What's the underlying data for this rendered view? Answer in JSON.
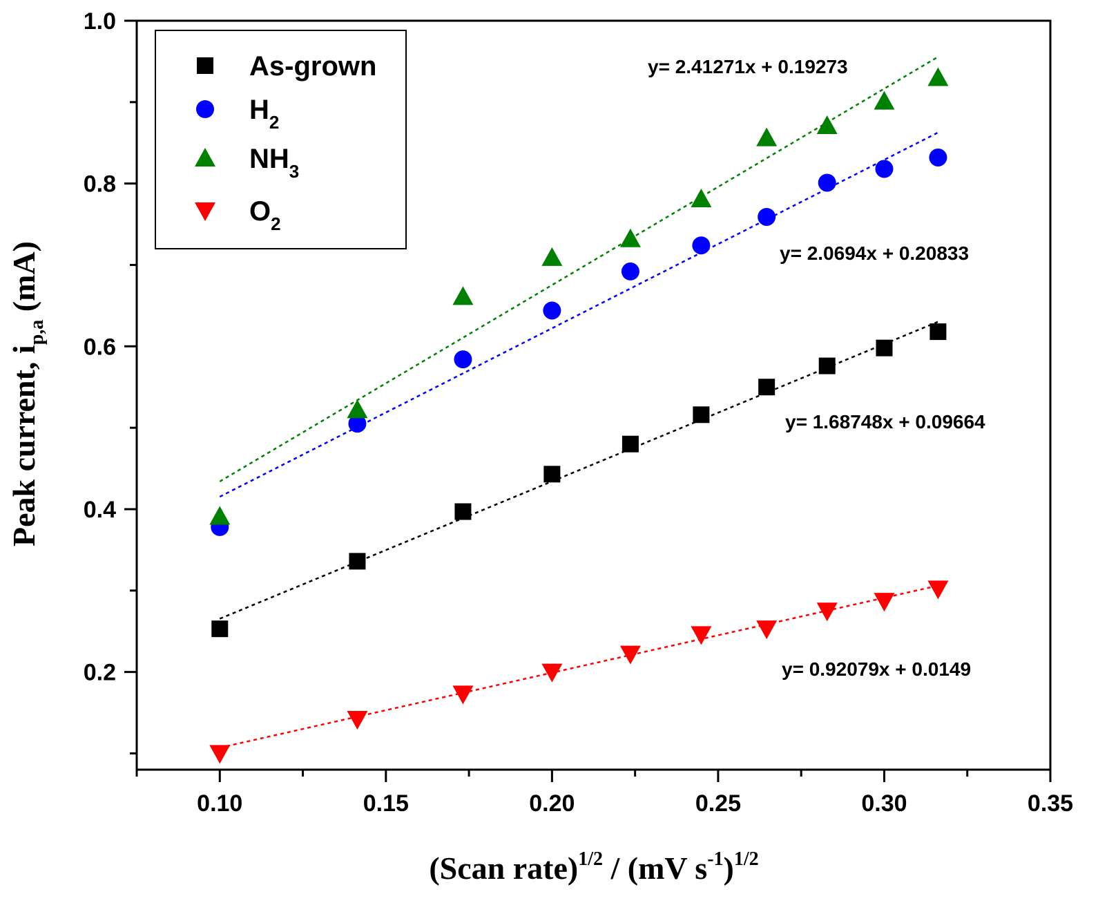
{
  "chart_data": {
    "type": "scatter",
    "title": "",
    "xlabel": {
      "main": "(Scan rate)",
      "sup1": "1/2",
      "mid": " / (mV s",
      "sup2": "-1",
      "close": ")",
      "sup3": "1/2"
    },
    "ylabel": {
      "main": "Peak current, i",
      "sub": "p,a",
      "unit": " (mA)"
    },
    "xlim": [
      0.075,
      0.35
    ],
    "ylim": [
      0.08,
      1.0
    ],
    "grid": false,
    "legend_position": "top-left",
    "x_ticks": [
      0.1,
      0.15,
      0.2,
      0.25,
      0.3,
      0.35
    ],
    "x_tick_labels": [
      "0.10",
      "0.15",
      "0.20",
      "0.25",
      "0.30",
      "0.35"
    ],
    "y_ticks": [
      0.2,
      0.4,
      0.6,
      0.8,
      1.0
    ],
    "y_tick_labels": [
      "0.2",
      "0.4",
      "0.6",
      "0.8",
      "1.0"
    ],
    "x": [
      0.1,
      0.1414,
      0.1732,
      0.2,
      0.2236,
      0.2449,
      0.2646,
      0.2828,
      0.3,
      0.3162
    ],
    "series": [
      {
        "name": "As-grown",
        "label_main": "As-grown",
        "label_sub": "",
        "marker": "square",
        "color": "#000000",
        "values": [
          0.253,
          0.336,
          0.397,
          0.443,
          0.48,
          0.516,
          0.55,
          0.576,
          0.598,
          0.618
        ],
        "fit": {
          "slope": 1.68748,
          "intercept": 0.09664,
          "label": "y= 1.68748x + 0.09664"
        }
      },
      {
        "name": "H2",
        "label_main": "H",
        "label_sub": "2",
        "marker": "circle",
        "color": "#0000ff",
        "values": [
          0.378,
          0.505,
          0.584,
          0.644,
          0.692,
          0.724,
          0.759,
          0.801,
          0.818,
          0.832
        ],
        "fit": {
          "slope": 2.0694,
          "intercept": 0.20833,
          "label": "y= 2.0694x + 0.20833"
        }
      },
      {
        "name": "NH3",
        "label_main": "NH",
        "label_sub": "3",
        "marker": "triangle-up",
        "color": "#008000",
        "values": [
          0.391,
          0.522,
          0.661,
          0.709,
          0.732,
          0.781,
          0.856,
          0.871,
          0.901,
          0.93
        ],
        "fit": {
          "slope": 2.41271,
          "intercept": 0.19273,
          "label": "y= 2.41271x + 0.19273"
        }
      },
      {
        "name": "O2",
        "label_main": "O",
        "label_sub": "2",
        "marker": "triangle-down",
        "color": "#ff0000",
        "values": [
          0.1,
          0.142,
          0.173,
          0.2,
          0.222,
          0.246,
          0.253,
          0.275,
          0.287,
          0.302
        ],
        "fit": {
          "slope": 0.92079,
          "intercept": 0.0149,
          "label": "y= 0.92079x + 0.0149"
        }
      }
    ]
  }
}
